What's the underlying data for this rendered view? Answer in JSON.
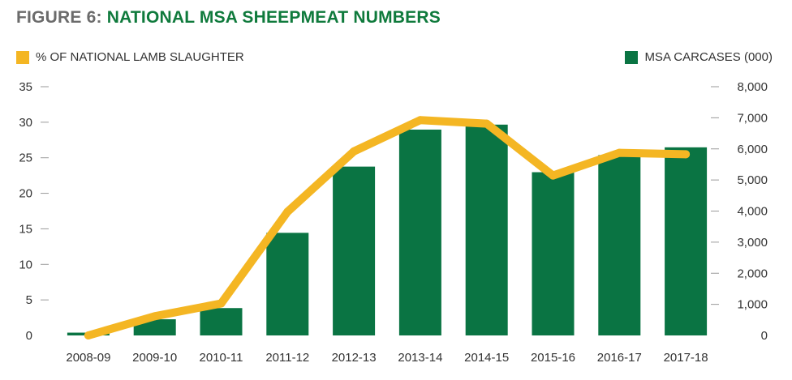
{
  "figure": {
    "number": "FIGURE 6:",
    "title": "NATIONAL MSA SHEEPMEAT NUMBERS"
  },
  "colors": {
    "title_number": "#6b6b6b",
    "title_text": "#0f7a3c",
    "bars": "#0a7443",
    "line": "#f4b623",
    "tick_marks": "#9a9a9a"
  },
  "chart_data": {
    "type": "bar",
    "title": "NATIONAL MSA SHEEPMEAT NUMBERS",
    "categories": [
      "2008-09",
      "2009-10",
      "2010-11",
      "2011-12",
      "2012-13",
      "2013-14",
      "2014-15",
      "2015-16",
      "2016-17",
      "2017-18"
    ],
    "series": [
      {
        "name": "MSA CARCASES (000)",
        "type": "bar",
        "axis": "right",
        "values": [
          90,
          520,
          880,
          3300,
          5430,
          6620,
          6780,
          5250,
          5800,
          6050
        ]
      },
      {
        "name": "% OF NATIONAL LAMB SLAUGHTER",
        "type": "line",
        "axis": "left",
        "values": [
          0,
          2.7,
          4.5,
          17.4,
          25.9,
          30.3,
          29.8,
          22.5,
          25.7,
          25.5
        ]
      }
    ],
    "y_left": {
      "ylim": [
        0,
        35
      ],
      "ticks": [
        0,
        5,
        10,
        15,
        20,
        25,
        30,
        35
      ],
      "tick_labels": [
        "0",
        "5",
        "10",
        "15",
        "20",
        "25",
        "30",
        "35"
      ]
    },
    "y_right": {
      "ylim": [
        0,
        8000
      ],
      "ticks": [
        0,
        1000,
        2000,
        3000,
        4000,
        5000,
        6000,
        7000,
        8000
      ],
      "tick_labels": [
        "0",
        "1,000",
        "2,000",
        "3,000",
        "4,000",
        "5,000",
        "6,000",
        "7,000",
        "8,000"
      ]
    },
    "grid": false,
    "legend": "top"
  }
}
